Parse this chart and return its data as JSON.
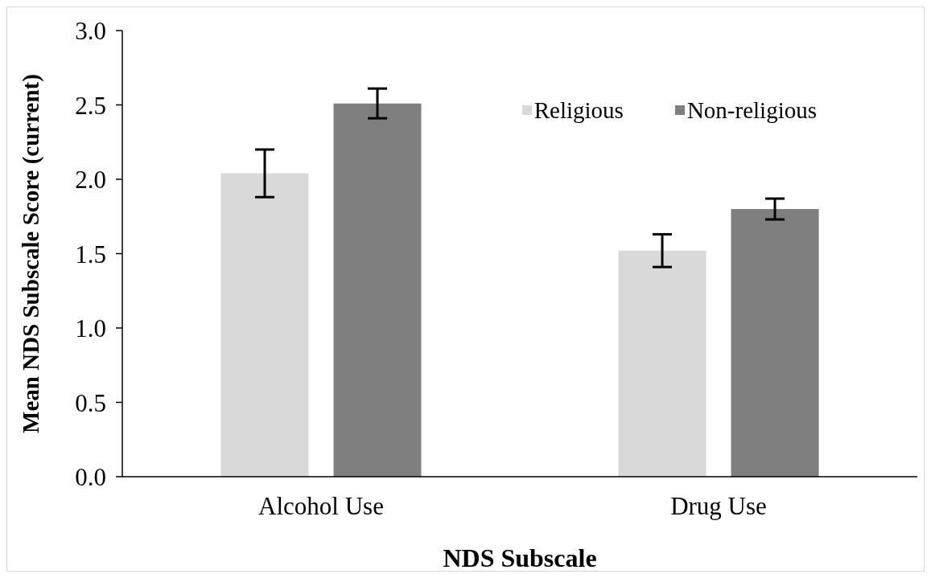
{
  "chart_data": {
    "type": "bar",
    "xlabel": "NDS Subscale",
    "ylabel": "Mean NDS Subscale Score (current)",
    "categories": [
      "Alcohol Use",
      "Drug Use"
    ],
    "series": [
      {
        "name": "Religious",
        "color": "#d9d9d9",
        "values": [
          2.04,
          1.52
        ],
        "errors": [
          0.16,
          0.11
        ]
      },
      {
        "name": "Non-religious",
        "color": "#7f7f7f",
        "values": [
          2.51,
          1.8
        ],
        "errors": [
          0.1,
          0.07
        ]
      }
    ],
    "ylim": [
      0,
      3
    ],
    "yticks": [
      {
        "value": 0,
        "label": "0.0"
      },
      0.5,
      {
        "value": 1,
        "label": "1.0"
      },
      1.5,
      {
        "value": 2,
        "label": "2.0"
      },
      2.5,
      {
        "value": 3,
        "label": "3.0"
      }
    ],
    "grid": false,
    "legend": "top right"
  }
}
